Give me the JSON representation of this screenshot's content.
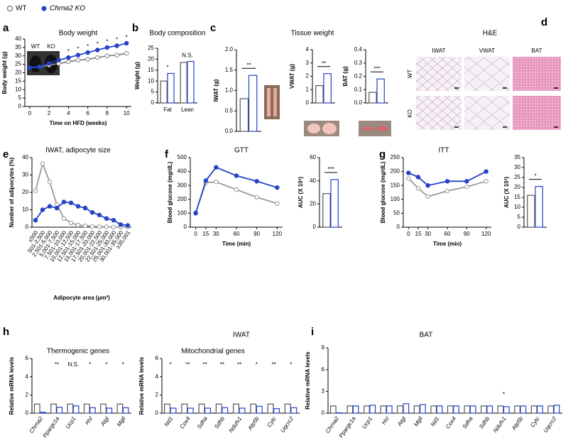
{
  "panel_letters": [
    "a",
    "b",
    "c",
    "d",
    "e",
    "f",
    "g",
    "h",
    "i"
  ],
  "legend": [
    "WT",
    "Chrna2 KO"
  ],
  "figure_headers": {
    "h": "IWAT"
  },
  "histology": {
    "title": "H&E",
    "columns": [
      "IWAT",
      "VWAT",
      "BAT"
    ],
    "rows": [
      "WT",
      "KO"
    ]
  },
  "chart_data": [
    {
      "type": "line",
      "title": "Body weight",
      "xlabel": "Time on HFD (weeks)",
      "ylabel": "Body weight (g)",
      "inset_labels": [
        "WT",
        "KO"
      ],
      "x": [
        0,
        1,
        2,
        3,
        4,
        5,
        6,
        7,
        8,
        9,
        10
      ],
      "xlim": [
        -0.5,
        10.5
      ],
      "xticks": [
        0,
        2,
        4,
        6,
        8,
        10
      ],
      "ylim": [
        0,
        40
      ],
      "yticks": [
        0,
        5,
        10,
        15,
        20,
        25,
        30,
        35,
        40
      ],
      "series": [
        {
          "color": "#888888",
          "marker": "open",
          "values": [
            23,
            23.5,
            24.5,
            25.5,
            26.5,
            27.5,
            28,
            29,
            30,
            30.5,
            31.5
          ]
        },
        {
          "color": "#2442c8",
          "marker": "filled",
          "values": [
            23,
            23.5,
            25.5,
            27.5,
            29,
            30.5,
            32,
            33.5,
            35,
            36,
            37.5
          ]
        }
      ],
      "significance": [
        null,
        null,
        null,
        null,
        "*",
        "*",
        "*",
        "*",
        "*",
        "*",
        "*"
      ]
    },
    {
      "type": "bar",
      "title": "Body composition",
      "ylabel": "Weight (g)",
      "categories": [
        "Fat",
        "Lean"
      ],
      "ylim": [
        0,
        25
      ],
      "yticks": [
        0,
        5,
        10,
        15,
        20,
        25
      ],
      "series": [
        {
          "color": "#555555",
          "values": [
            10,
            18.5
          ]
        },
        {
          "color": "#2442c8",
          "values": [
            13.5,
            19
          ]
        }
      ],
      "significance": [
        "*",
        "N.S."
      ]
    },
    {
      "type": "bar",
      "title": "Tissue weight",
      "ylabel": "IWAT (g)",
      "ylim": [
        0,
        2
      ],
      "yticks": [
        {
          "value": 0,
          "label": "0.0"
        },
        0.5,
        {
          "value": 1,
          "label": "1.0"
        },
        1.5,
        {
          "value": 2,
          "label": "2.0"
        }
      ],
      "series": [
        {
          "color": "#555555",
          "values": [
            0.8
          ]
        },
        {
          "color": "#2442c8",
          "values": [
            1.37
          ]
        }
      ],
      "significance": "**"
    },
    {
      "type": "bar",
      "ylabel": "VWAT (g)",
      "ylim": [
        0,
        4
      ],
      "yticks": [
        0,
        1,
        2,
        3,
        4
      ],
      "series": [
        {
          "color": "#555555",
          "values": [
            1.3
          ]
        },
        {
          "color": "#2442c8",
          "values": [
            2.2
          ]
        }
      ],
      "significance": "**"
    },
    {
      "type": "bar",
      "ylabel": "BAT (g)",
      "ylim": [
        0,
        0.4
      ],
      "yticks": [
        {
          "value": 0,
          "label": "0.0"
        },
        0.1,
        0.2,
        0.3,
        0.4
      ],
      "series": [
        {
          "color": "#555555",
          "values": [
            0.08
          ]
        },
        {
          "color": "#2442c8",
          "values": [
            0.18
          ]
        }
      ],
      "significance": "***"
    },
    {
      "type": "line",
      "title": "IWAT, adipocyte size",
      "xlabel": "Adipocyte area (μm²)",
      "ylabel": "Number of adipocytes (%)",
      "categories": [
        "≤500",
        "501-2,500",
        "2,501-5,000",
        "5,001-7,500",
        "7,501-10,000",
        "10,001-12,500",
        "12,501-15,000",
        "15,001-17,500",
        "17,501-20,000",
        "20,001-22,500",
        "22,501-25,000",
        "25,001-30,000",
        "30,001-35,000",
        "≥35,001"
      ],
      "ylim": [
        0,
        40
      ],
      "yticks": [
        0,
        10,
        20,
        30,
        40
      ],
      "series": [
        {
          "color": "#999999",
          "marker": "open",
          "values": [
            21,
            36.5,
            26,
            13,
            5,
            2.5,
            1.2,
            0.8,
            0.5,
            0.3,
            0.2,
            0.1,
            0.1,
            0.1
          ]
        },
        {
          "color": "#2442c8",
          "marker": "filled",
          "values": [
            4,
            10,
            12,
            11,
            14.5,
            14,
            12,
            11,
            8.5,
            7,
            5,
            4,
            1.5,
            1
          ]
        }
      ]
    },
    {
      "type": "line",
      "title": "GTT",
      "xlabel": "Time (min)",
      "ylabel": "Blood glucose (mg/dL)",
      "x": [
        0,
        15,
        30,
        60,
        90,
        120
      ],
      "xlim": [
        -8,
        128
      ],
      "xticks": [
        0,
        15,
        30,
        60,
        90,
        120
      ],
      "ylim": [
        0,
        500
      ],
      "yticks": [
        0,
        100,
        200,
        300,
        400,
        500
      ],
      "series": [
        {
          "color": "#999999",
          "marker": "open",
          "values": [
            105,
            320,
            325,
            270,
            215,
            170
          ]
        },
        {
          "color": "#2442c8",
          "marker": "filled",
          "values": [
            100,
            335,
            430,
            370,
            330,
            285
          ]
        }
      ]
    },
    {
      "type": "bar",
      "ylabel": "AUC (X 10³)",
      "ylim": [
        0,
        60
      ],
      "yticks": [
        0,
        20,
        40,
        60
      ],
      "series": [
        {
          "color": "#555555",
          "values": [
            29
          ]
        },
        {
          "color": "#2442c8",
          "values": [
            41
          ]
        }
      ],
      "significance": "***"
    },
    {
      "type": "line",
      "title": "ITT",
      "xlabel": "Time (min)",
      "ylabel": "Blood glucose (mg/dL)",
      "x": [
        0,
        15,
        30,
        60,
        90,
        120
      ],
      "xlim": [
        -8,
        128
      ],
      "xticks": [
        0,
        15,
        30,
        60,
        90,
        120
      ],
      "ylim": [
        0,
        250
      ],
      "yticks": [
        0,
        50,
        100,
        150,
        200,
        250
      ],
      "series": [
        {
          "color": "#999999",
          "marker": "open",
          "values": [
            175,
            140,
            110,
            130,
            145,
            165
          ]
        },
        {
          "color": "#2442c8",
          "marker": "filled",
          "values": [
            195,
            180,
            150,
            165,
            165,
            200
          ]
        }
      ]
    },
    {
      "type": "bar",
      "ylabel": "AUC (X 10³)",
      "ylim": [
        0,
        35
      ],
      "yticks": [
        0,
        5,
        10,
        15,
        20,
        25,
        30,
        35
      ],
      "series": [
        {
          "color": "#555555",
          "values": [
            16
          ]
        },
        {
          "color": "#2442c8",
          "values": [
            20.5
          ]
        }
      ],
      "significance": "*"
    },
    {
      "type": "bar",
      "title": "Thermogenic genes",
      "ylabel": "Relative mRNA levels",
      "categories": [
        "Chrna2",
        "Ppargc1a",
        "Ucp1",
        "Hsl",
        "Atgl",
        "Mgll"
      ],
      "ylim": [
        0,
        6
      ],
      "yticks": [
        0,
        2,
        4,
        6
      ],
      "series": [
        {
          "color": "#555555",
          "values": [
            1,
            1,
            1,
            1,
            1,
            1
          ]
        },
        {
          "color": "#2442c8",
          "values": [
            0.1,
            0.65,
            0.8,
            0.6,
            0.55,
            0.6
          ]
        }
      ],
      "significance": [
        null,
        "**",
        "N.S.",
        "*",
        "*",
        "*"
      ]
    },
    {
      "type": "bar",
      "title": "Mitochondrial genes",
      "ylabel": "Relative mRNA levels",
      "categories": [
        "Nd1",
        "Cox4",
        "Sdha",
        "Sdhb",
        "Ndufv1",
        "Atp5b",
        "Cytc",
        "Uqcrc2"
      ],
      "ylim": [
        0,
        6
      ],
      "yticks": [
        0,
        2,
        4,
        6
      ],
      "series": [
        {
          "color": "#555555",
          "values": [
            1,
            1,
            1,
            1,
            1,
            1,
            1,
            1
          ]
        },
        {
          "color": "#2442c8",
          "values": [
            0.55,
            0.55,
            0.55,
            0.6,
            0.55,
            0.75,
            0.5,
            0.6
          ]
        }
      ],
      "significance": [
        "*",
        "**",
        "**",
        "**",
        "**",
        "*",
        "**",
        "*"
      ]
    },
    {
      "type": "bar",
      "title": "BAT",
      "ylabel": "Relative mRNA levels",
      "categories": [
        "Chrna2",
        "Ppargc1a",
        "Ucp1",
        "Hsl",
        "Atgl",
        "Mgll",
        "Nd1",
        "Cox4",
        "Sdha",
        "Sdhb",
        "Ndufv1",
        "Atp5b",
        "Cytc",
        "Uqcrc2"
      ],
      "ylim": [
        0,
        9
      ],
      "yticks": [
        0,
        3,
        6,
        9
      ],
      "series": [
        {
          "color": "#555555",
          "values": [
            1,
            1,
            1,
            1,
            1,
            1,
            1,
            1,
            1,
            1,
            1,
            1,
            1,
            1
          ]
        },
        {
          "color": "#2442c8",
          "values": [
            0.05,
            1,
            1.1,
            1,
            1.3,
            1.2,
            1,
            1,
            1,
            1,
            0.9,
            1,
            1,
            1.1
          ]
        }
      ],
      "significance": [
        null,
        null,
        null,
        null,
        null,
        null,
        null,
        null,
        null,
        null,
        "*",
        null,
        null,
        null
      ]
    }
  ]
}
